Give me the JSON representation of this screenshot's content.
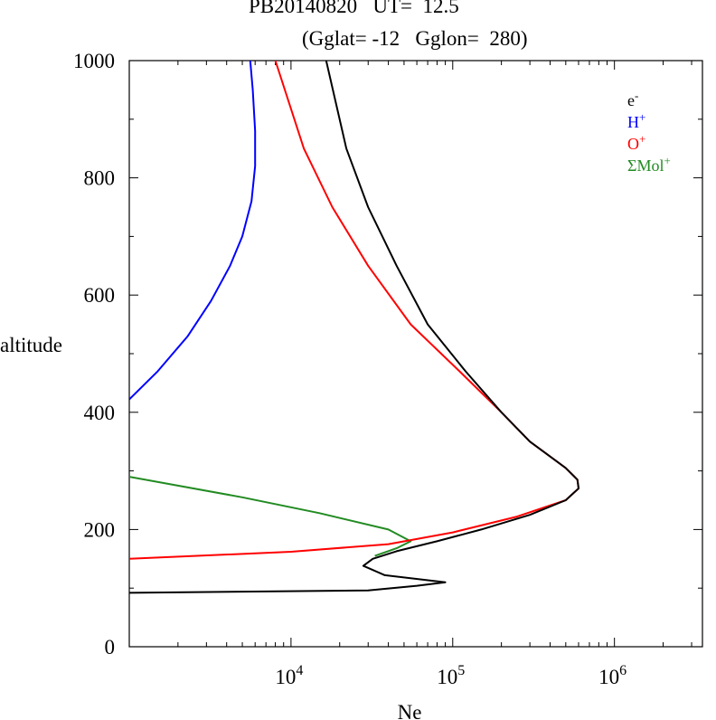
{
  "title": {
    "line1": "PB20140820   UT=  12.5",
    "line2": "(Gglat= -12   Gglon=  280)"
  },
  "chart_data": {
    "type": "line",
    "xlabel": "Ne",
    "ylabel": "altitude",
    "xscale": "log",
    "xlim": [
      1000,
      3500000
    ],
    "ylim": [
      0,
      1000
    ],
    "x_ticks": [
      {
        "value": 10000,
        "base": "10",
        "exp": "4"
      },
      {
        "value": 100000,
        "base": "10",
        "exp": "5"
      },
      {
        "value": 1000000,
        "base": "10",
        "exp": "6"
      }
    ],
    "y_ticks": [
      0,
      200,
      400,
      600,
      800,
      1000
    ],
    "legend_position": "top-right",
    "series": [
      {
        "name": "e-",
        "label_base": "e",
        "label_sup": "-",
        "color": "#000000",
        "points": [
          [
            1000,
            92
          ],
          [
            30000,
            96
          ],
          [
            60000,
            104
          ],
          [
            90000,
            110
          ],
          [
            38000,
            122
          ],
          [
            28000,
            138
          ],
          [
            32000,
            150
          ],
          [
            45000,
            163
          ],
          [
            80000,
            180
          ],
          [
            150000,
            200
          ],
          [
            300000,
            225
          ],
          [
            500000,
            250
          ],
          [
            600000,
            270
          ],
          [
            590000,
            285
          ],
          [
            500000,
            305
          ],
          [
            300000,
            350
          ],
          [
            200000,
            400
          ],
          [
            120000,
            470
          ],
          [
            70000,
            550
          ],
          [
            45000,
            650
          ],
          [
            30000,
            750
          ],
          [
            22000,
            850
          ],
          [
            16500,
            1000
          ]
        ]
      },
      {
        "name": "H+",
        "label_base": "H",
        "label_sup": "+",
        "color": "#0000ff",
        "points": [
          [
            1000,
            422
          ],
          [
            1500,
            470
          ],
          [
            2300,
            530
          ],
          [
            3200,
            590
          ],
          [
            4200,
            650
          ],
          [
            5000,
            700
          ],
          [
            5700,
            760
          ],
          [
            6000,
            820
          ],
          [
            6000,
            880
          ],
          [
            5800,
            950
          ],
          [
            5600,
            1000
          ]
        ]
      },
      {
        "name": "O+",
        "label_base": "O",
        "label_sup": "+",
        "color": "#ff0000",
        "points": [
          [
            1000,
            150
          ],
          [
            10000,
            162
          ],
          [
            40000,
            175
          ],
          [
            100000,
            195
          ],
          [
            250000,
            222
          ],
          [
            500000,
            250
          ],
          [
            600000,
            270
          ],
          [
            590000,
            285
          ],
          [
            500000,
            305
          ],
          [
            300000,
            350
          ],
          [
            200000,
            400
          ],
          [
            110000,
            470
          ],
          [
            55000,
            550
          ],
          [
            30000,
            650
          ],
          [
            18000,
            750
          ],
          [
            12000,
            850
          ],
          [
            8000,
            1000
          ]
        ]
      },
      {
        "name": "ΣMol+",
        "label_base": "ΣMol",
        "label_sup": "+",
        "color": "#228b22",
        "points": [
          [
            1000,
            290
          ],
          [
            5000,
            255
          ],
          [
            15000,
            228
          ],
          [
            40000,
            200
          ],
          [
            55000,
            180
          ],
          [
            45000,
            168
          ],
          [
            33000,
            155
          ]
        ]
      }
    ]
  }
}
